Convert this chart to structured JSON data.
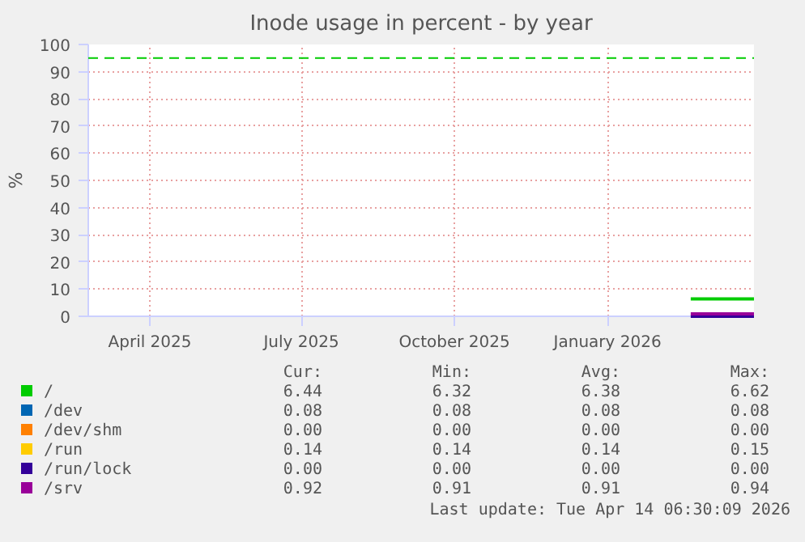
{
  "chart_data": {
    "type": "line",
    "title": "Inode usage in percent - by year",
    "ylabel": "%",
    "xlim": [
      "2025-03-10",
      "2026-04-14"
    ],
    "ylim": [
      0,
      100
    ],
    "yticks": [
      0,
      10,
      20,
      30,
      40,
      50,
      60,
      70,
      80,
      90,
      100
    ],
    "xticks": [
      {
        "value": "2025-04-16",
        "label": "April 2025"
      },
      {
        "value": "2025-07-16",
        "label": "July 2025"
      },
      {
        "value": "2025-10-16",
        "label": "October 2025"
      },
      {
        "value": "2026-01-16",
        "label": "January 2026"
      }
    ],
    "grid": true,
    "legend": "bottom",
    "line_style": "solid",
    "ref_lines": [
      {
        "axis": "y",
        "value": 95,
        "color": "#00cc00",
        "line_style": "dashed"
      }
    ],
    "series": [
      {
        "name": "/",
        "color": "#00cc00",
        "x": [
          "2026-03-07",
          "2026-04-14"
        ],
        "values": [
          6.4,
          6.4
        ]
      },
      {
        "name": "/dev",
        "color": "#0066b3"
      },
      {
        "name": "/dev/shm",
        "color": "#ff8000"
      },
      {
        "name": "/run",
        "color": "#ffcc00"
      },
      {
        "name": "/run/lock",
        "color": "#330099",
        "x": [
          "2026-03-07",
          "2026-04-14"
        ],
        "values": [
          0,
          0
        ]
      },
      {
        "name": "/srv",
        "color": "#990099",
        "x": [
          "2026-03-07",
          "2026-04-14"
        ],
        "values": [
          0.9,
          0.9
        ]
      }
    ],
    "annotations": [
      "Cur:",
      "Min:",
      "Avg:",
      "Max:",
      "6.44",
      "6.32",
      "6.38",
      "6.62",
      "0.08",
      "0.08",
      "0.08",
      "0.08",
      "0.00",
      "0.00",
      "0.00",
      "0.00",
      "0.14",
      "0.14",
      "0.14",
      "0.15",
      "0.00",
      "0.00",
      "0.00",
      "0.00",
      "0.92",
      "0.91",
      "0.91",
      "0.94",
      "Last update: Tue Apr 14 06:30:09 2026"
    ]
  }
}
